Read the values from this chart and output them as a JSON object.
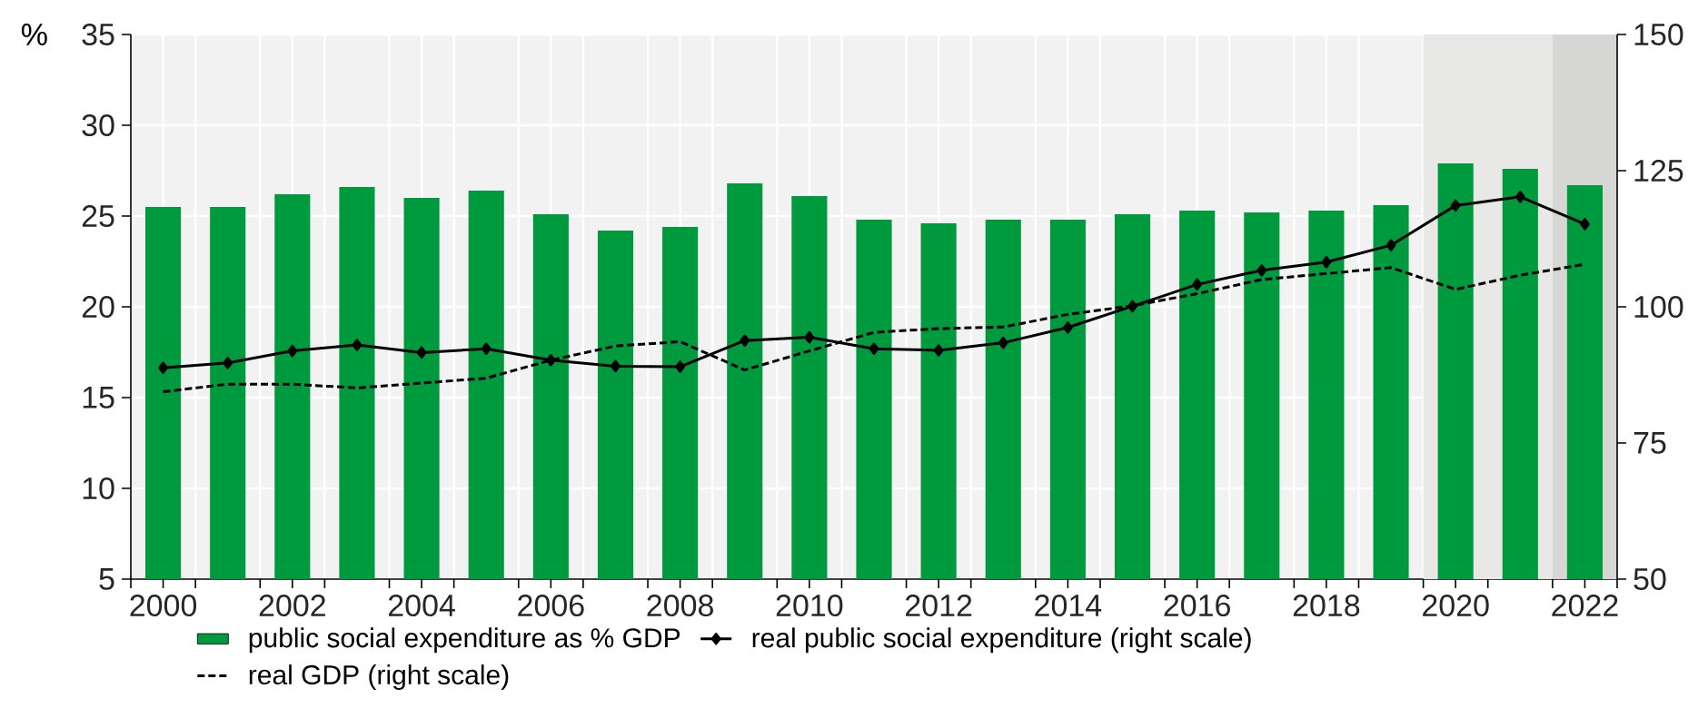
{
  "chart_data": {
    "type": "bar",
    "ylabel": "%",
    "x": [
      2000,
      2001,
      2002,
      2003,
      2004,
      2005,
      2006,
      2007,
      2008,
      2009,
      2010,
      2011,
      2012,
      2013,
      2014,
      2015,
      2016,
      2017,
      2018,
      2019,
      2020,
      2021,
      2022
    ],
    "xlim": [
      1999.5,
      2022.5
    ],
    "xticks": [
      2000,
      2002,
      2004,
      2006,
      2008,
      2010,
      2012,
      2014,
      2016,
      2018,
      2020,
      2022,
      {
        "value": 1999.5,
        "label": null
      },
      {
        "value": 2000.5,
        "label": null
      },
      {
        "value": 2001.5,
        "label": null
      },
      {
        "value": 2002.5,
        "label": null
      },
      {
        "value": 2003.5,
        "label": null
      },
      {
        "value": 2004.5,
        "label": null
      },
      {
        "value": 2005.5,
        "label": null
      },
      {
        "value": 2006.5,
        "label": null
      },
      {
        "value": 2007.5,
        "label": null
      },
      {
        "value": 2008.5,
        "label": null
      },
      {
        "value": 2009.5,
        "label": null
      },
      {
        "value": 2010.5,
        "label": null
      },
      {
        "value": 2011.5,
        "label": null
      },
      {
        "value": 2012.5,
        "label": null
      },
      {
        "value": 2013.5,
        "label": null
      },
      {
        "value": 2014.5,
        "label": null
      },
      {
        "value": 2015.5,
        "label": null
      },
      {
        "value": 2016.5,
        "label": null
      },
      {
        "value": 2017.5,
        "label": null
      },
      {
        "value": 2018.5,
        "label": null
      },
      {
        "value": 2019.5,
        "label": null
      },
      {
        "value": 2020.5,
        "label": null
      },
      {
        "value": 2021.5,
        "label": null
      },
      {
        "value": 2022.5,
        "label": null
      }
    ],
    "ylim": [
      5,
      35
    ],
    "yticks": [
      5,
      10,
      15,
      20,
      25,
      30,
      35
    ],
    "y2lim": [
      50,
      150
    ],
    "y2ticks": [
      50,
      75,
      100,
      125,
      150
    ],
    "grid": true,
    "legend": "bottom",
    "bands": [
      {
        "axis": "x",
        "from": 2019.5,
        "to": 2021.5,
        "color": "#e8e8e6"
      },
      {
        "axis": "x",
        "from": 2021.5,
        "to": 2022.5,
        "color": "#d6d6d4"
      }
    ],
    "series": [
      {
        "name": "public social expenditure as % GDP",
        "axis": "y",
        "color": "#009a3e",
        "values": [
          25.5,
          25.5,
          26.2,
          26.6,
          26.0,
          26.4,
          25.1,
          24.2,
          24.4,
          26.8,
          26.1,
          24.8,
          24.6,
          24.8,
          24.8,
          25.1,
          25.3,
          25.2,
          25.3,
          25.6,
          27.9,
          27.6,
          26.7
        ]
      },
      {
        "name": "real public social expenditure (right scale)",
        "type": "line",
        "axis": "y2",
        "color": "#000000",
        "marker": "diamond",
        "line_style": "solid",
        "values": [
          88.8,
          89.7,
          91.9,
          93.0,
          91.6,
          92.3,
          90.2,
          89.1,
          89.0,
          93.8,
          94.4,
          92.3,
          92.0,
          93.4,
          96.2,
          100.1,
          104.1,
          106.7,
          108.2,
          111.3,
          118.6,
          120.2,
          115.2
        ]
      },
      {
        "name": "real GDP (right scale)",
        "type": "line",
        "axis": "y2",
        "color": "#000000",
        "marker": "none",
        "line_style": "dashed",
        "values": [
          84.4,
          85.8,
          85.8,
          85.1,
          86.0,
          86.9,
          90.2,
          92.8,
          93.6,
          88.4,
          91.9,
          95.3,
          96.0,
          96.3,
          98.6,
          100.2,
          102.4,
          105.0,
          106.1,
          107.2,
          103.2,
          105.8,
          107.8
        ]
      }
    ]
  }
}
